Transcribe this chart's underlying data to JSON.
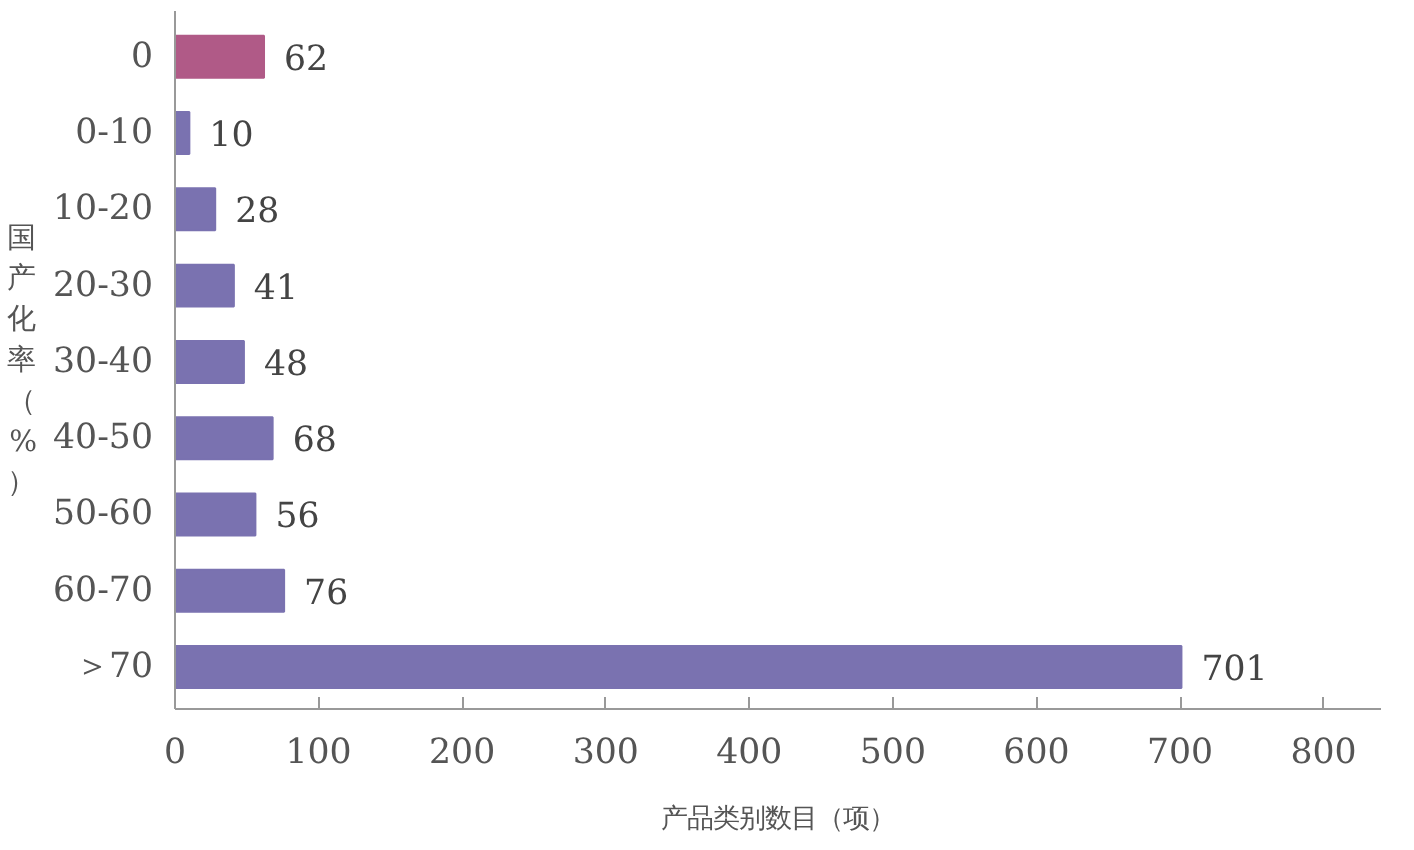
{
  "chart_data": {
    "type": "bar",
    "orientation": "horizontal",
    "xlabel": "产品类别数目（项）",
    "ylabel": "国产化率（%）",
    "categories": [
      "0",
      "0-10",
      "10-20",
      "20-30",
      "30-40",
      "40-50",
      "50-60",
      "60-70",
      "＞70"
    ],
    "values": [
      62,
      10,
      28,
      41,
      48,
      68,
      56,
      76,
      701
    ],
    "colors": [
      "#b05a87",
      "#7a72b0",
      "#7a72b0",
      "#7a72b0",
      "#7a72b0",
      "#7a72b0",
      "#7a72b0",
      "#7a72b0",
      "#7a72b0"
    ],
    "xlim": [
      0,
      840
    ],
    "xticks": [
      0,
      100,
      200,
      300,
      400,
      500,
      600,
      700,
      800
    ],
    "data_labels": true,
    "grid": false
  }
}
